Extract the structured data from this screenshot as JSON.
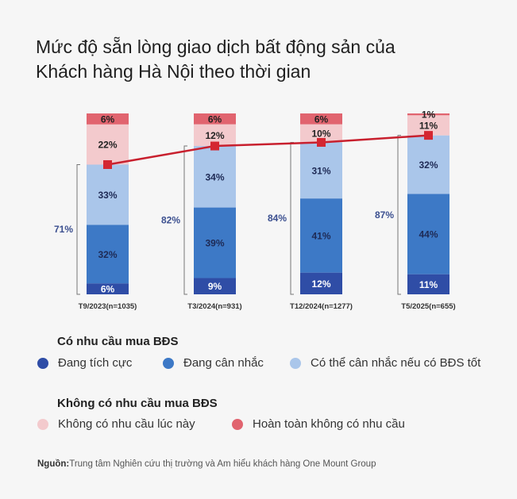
{
  "chart_data": {
    "type": "bar",
    "stacked": true,
    "title": "Mức độ sẵn lòng giao dịch bất động sản của Khách hàng Hà Nội theo thời gian",
    "categories": [
      "T9/2023(n=1035)",
      "T3/2024(n=931)",
      "T12/2024(n=1277)",
      "T5/2025(n=655)"
    ],
    "series": [
      {
        "name": "Đang tích cực",
        "color": "#2f4da6",
        "values": [
          6,
          9,
          12,
          11
        ]
      },
      {
        "name": "Đang cân nhắc",
        "color": "#3d79c6",
        "values": [
          32,
          39,
          41,
          44
        ]
      },
      {
        "name": "Có thể cân nhắc nếu có BĐS tốt",
        "color": "#aac6ea",
        "values": [
          33,
          34,
          31,
          32
        ]
      },
      {
        "name": "Không có nhu cầu lúc này",
        "color": "#f3cacd",
        "values": [
          22,
          12,
          10,
          11
        ]
      },
      {
        "name": "Hoàn toàn không có nhu cầu",
        "color": "#e1646f",
        "values": [
          6,
          6,
          6,
          1
        ]
      }
    ],
    "line": {
      "color": "#c8202e",
      "values": [
        71,
        82,
        84,
        87
      ]
    },
    "line_labels": [
      "71%",
      "82%",
      "84%",
      "87%"
    ],
    "legend_groups": [
      {
        "heading": "Có nhu cầu mua BĐS",
        "items": [
          0,
          1,
          2
        ]
      },
      {
        "heading": "Không có nhu cầu mua BĐS",
        "items": [
          3,
          4
        ]
      }
    ]
  },
  "title_line1": "Mức độ sẵn lòng giao dịch bất động sản của",
  "title_line2": "Khách hàng Hà Nội theo thời gian",
  "legend": {
    "heading1": "Có nhu cầu mua BĐS",
    "heading2": "Không có nhu cầu mua BĐS",
    "items": [
      "Đang tích cực",
      "Đang cân nhắc",
      "Có thể cân nhắc nếu có BĐS tốt",
      "Không có nhu cầu lúc này",
      "Hoàn toàn không có nhu cầu"
    ]
  },
  "source": {
    "label": "Nguồn:",
    "text": "Trung tâm Nghiên cứu thị trường và Am hiểu khách hàng One Mount Group"
  }
}
